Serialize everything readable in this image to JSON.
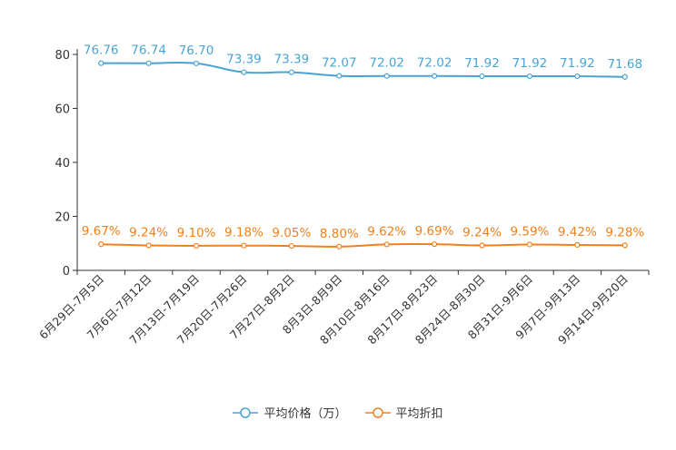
{
  "chart_data": {
    "type": "line",
    "categories": [
      "6月29日-7月5日",
      "7月6日-7月12日",
      "7月13日-7月19日",
      "7月20日-7月26日",
      "7月27日-8月2日",
      "8月3日-8月9日",
      "8月10日-8月16日",
      "8月17日-8月23日",
      "8月24日-8月30日",
      "8月31日-9月6日",
      "9月7日-9月13日",
      "9月14日-9月20日"
    ],
    "ylim": [
      0,
      80
    ],
    "yticks": [
      0,
      20,
      40,
      60,
      80
    ],
    "series": [
      {
        "name": "平均价格（万）",
        "color": "#4aa3d4",
        "values": [
          76.76,
          76.74,
          76.7,
          73.39,
          73.39,
          72.07,
          72.02,
          72.02,
          71.92,
          71.92,
          71.92,
          71.68
        ],
        "labels": [
          "76.76",
          "76.74",
          "76.70",
          "73.39",
          "73.39",
          "72.07",
          "72.02",
          "72.02",
          "71.92",
          "71.92",
          "71.92",
          "71.68"
        ]
      },
      {
        "name": "平均折扣",
        "color": "#f0801c",
        "values": [
          9.67,
          9.24,
          9.1,
          9.18,
          9.05,
          8.8,
          9.62,
          9.69,
          9.24,
          9.59,
          9.42,
          9.28
        ],
        "labels": [
          "9.67%",
          "9.24%",
          "9.10%",
          "9.18%",
          "9.05%",
          "8.80%",
          "9.62%",
          "9.69%",
          "9.24%",
          "9.59%",
          "9.42%",
          "9.28%"
        ]
      }
    ]
  }
}
